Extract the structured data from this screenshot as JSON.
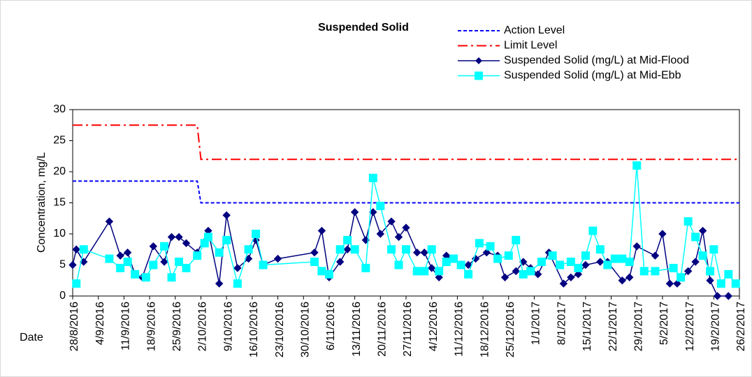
{
  "chart_data": {
    "type": "line",
    "title": "Suspended Solid",
    "y_label": "Concentration, mg/L",
    "x_label": "Date",
    "xlim": [
      "28/8/2016",
      "26/2/2017"
    ],
    "xticks": [
      "28/8/2016",
      "4/9/2016",
      "11/9/2016",
      "18/9/2016",
      "25/9/2016",
      "2/10/2016",
      "9/10/2016",
      "16/10/2016",
      "23/10/2016",
      "30/10/2016",
      "6/11/2016",
      "13/11/2016",
      "20/11/2016",
      "27/11/2016",
      "4/12/2016",
      "11/12/2016",
      "18/12/2016",
      "25/12/2016",
      "1/1/2017",
      "8/1/2017",
      "15/1/2017",
      "22/1/2017",
      "29/1/2017",
      "5/2/2017",
      "12/2/2017",
      "19/2/2017",
      "26/2/2017"
    ],
    "ylim": [
      0,
      30
    ],
    "yticks": [
      0,
      5,
      10,
      15,
      20,
      25,
      30
    ],
    "grid": false,
    "series": [
      {
        "name": "Action Level",
        "color": "#0000ff",
        "dash": "dashed",
        "marker": "none",
        "x": [
          "28/8/2016",
          "1/10/2016",
          "2/10/2016",
          "26/2/2017"
        ],
        "values": [
          18.5,
          18.5,
          15,
          15
        ]
      },
      {
        "name": "Limit Level",
        "color": "#ff0000",
        "dash": "dashdot",
        "marker": "none",
        "x": [
          "28/8/2016",
          "1/10/2016",
          "2/10/2016",
          "26/2/2017"
        ],
        "values": [
          27.5,
          27.5,
          22,
          22
        ]
      },
      {
        "name": "Suspended Solid (mg/L) at Mid-Flood",
        "color": "#000080",
        "dash": "solid",
        "marker": "diamond",
        "x": [
          "28/8/2016",
          "29/8/2016",
          "31/8/2016",
          "7/9/2016",
          "10/9/2016",
          "12/9/2016",
          "14/9/2016",
          "16/9/2016",
          "19/9/2016",
          "22/9/2016",
          "24/9/2016",
          "26/9/2016",
          "28/9/2016",
          "1/10/2016",
          "4/10/2016",
          "7/10/2016",
          "9/10/2016",
          "12/10/2016",
          "15/10/2016",
          "17/10/2016",
          "19/10/2016",
          "23/10/2016",
          "2/11/2016",
          "4/11/2016",
          "6/11/2016",
          "9/11/2016",
          "11/11/2016",
          "13/11/2016",
          "16/11/2016",
          "18/11/2016",
          "20/11/2016",
          "23/11/2016",
          "25/11/2016",
          "27/11/2016",
          "30/11/2016",
          "2/12/2016",
          "4/12/2016",
          "6/12/2016",
          "8/12/2016",
          "12/12/2016",
          "14/12/2016",
          "16/12/2016",
          "19/12/2016",
          "22/12/2016",
          "24/12/2016",
          "27/12/2016",
          "29/12/2016",
          "31/12/2016",
          "2/1/2017",
          "5/1/2017",
          "9/1/2017",
          "11/1/2017",
          "13/1/2017",
          "15/1/2017",
          "19/1/2017",
          "21/1/2017",
          "25/1/2017",
          "27/1/2017",
          "29/1/2017",
          "3/2/2017",
          "5/2/2017",
          "7/2/2017",
          "9/2/2017",
          "12/2/2017",
          "14/2/2017",
          "16/2/2017",
          "18/2/2017",
          "20/2/2017",
          "23/2/2017"
        ],
        "values": [
          5,
          7.5,
          5.5,
          12,
          6.5,
          7,
          3.5,
          3,
          8,
          5.5,
          9.5,
          9.5,
          8.5,
          7,
          10.5,
          2,
          13,
          4.5,
          6,
          9,
          5,
          6,
          7,
          10.5,
          3,
          5.5,
          7.5,
          13.5,
          9,
          13.5,
          10,
          12,
          9.5,
          11,
          7,
          7,
          4.5,
          3,
          6.5,
          5,
          5,
          6,
          7,
          6.5,
          3,
          4,
          5.5,
          4.5,
          3.5,
          7,
          2,
          3,
          3.5,
          5,
          5.5,
          5.5,
          2.5,
          3,
          8,
          6.5,
          10,
          2,
          2,
          4,
          5.5,
          10.5,
          2.5,
          0,
          0
        ]
      },
      {
        "name": "Suspended Solid (mg/L) at Mid-Ebb",
        "color": "#00ffff",
        "dash": "solid",
        "marker": "square",
        "x": [
          "29/8/2016",
          "31/8/2016",
          "7/9/2016",
          "10/9/2016",
          "12/9/2016",
          "14/9/2016",
          "17/9/2016",
          "19/9/2016",
          "22/9/2016",
          "24/9/2016",
          "26/9/2016",
          "28/9/2016",
          "1/10/2016",
          "3/10/2016",
          "4/10/2016",
          "7/10/2016",
          "9/10/2016",
          "12/10/2016",
          "15/10/2016",
          "17/10/2016",
          "19/10/2016",
          "2/11/2016",
          "4/11/2016",
          "6/11/2016",
          "9/11/2016",
          "11/11/2016",
          "13/11/2016",
          "16/11/2016",
          "18/11/2016",
          "20/11/2016",
          "23/11/2016",
          "25/11/2016",
          "27/11/2016",
          "30/11/2016",
          "2/12/2016",
          "4/12/2016",
          "6/12/2016",
          "8/12/2016",
          "10/12/2016",
          "12/12/2016",
          "14/12/2016",
          "17/12/2016",
          "20/12/2016",
          "22/12/2016",
          "25/12/2016",
          "27/12/2016",
          "29/12/2016",
          "31/12/2016",
          "3/1/2017",
          "6/1/2017",
          "8/1/2017",
          "11/1/2017",
          "13/1/2017",
          "15/1/2017",
          "17/1/2017",
          "19/1/2017",
          "21/1/2017",
          "23/1/2017",
          "25/1/2017",
          "27/1/2017",
          "29/1/2017",
          "31/1/2017",
          "3/2/2017",
          "8/2/2017",
          "10/2/2017",
          "12/2/2017",
          "14/2/2017",
          "16/2/2017",
          "18/2/2017",
          "19/2/2017",
          "21/2/2017",
          "23/2/2017",
          "25/2/2017"
        ],
        "values": [
          2,
          7.5,
          6,
          4.5,
          5.5,
          3.5,
          3,
          5,
          8,
          3,
          5.5,
          4.5,
          6.5,
          8.5,
          9.5,
          7,
          9,
          2,
          7.5,
          10,
          5,
          5.5,
          4,
          3.5,
          7.5,
          9,
          7.5,
          4.5,
          19,
          14.5,
          7.5,
          5,
          7.5,
          4,
          4,
          7.5,
          4,
          5.5,
          6,
          5,
          3.5,
          8.5,
          8,
          6,
          6.5,
          9,
          3.5,
          4,
          5.5,
          6.5,
          5,
          5.5,
          4.5,
          6.5,
          10.5,
          7.5,
          5,
          6,
          6,
          5.5,
          21,
          4,
          4,
          4.5,
          3,
          12,
          9.5,
          6.5,
          4,
          7.5,
          2,
          3.5,
          2
        ]
      }
    ]
  }
}
